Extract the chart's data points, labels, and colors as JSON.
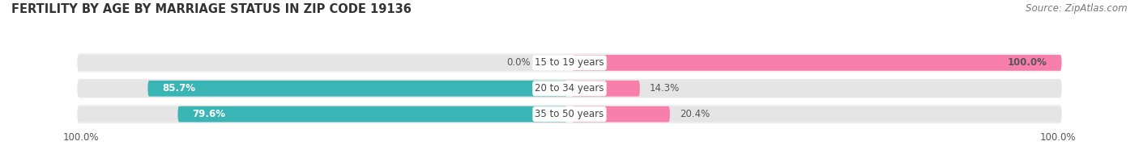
{
  "title": "FERTILITY BY AGE BY MARRIAGE STATUS IN ZIP CODE 19136",
  "source": "Source: ZipAtlas.com",
  "categories": [
    "15 to 19 years",
    "20 to 34 years",
    "35 to 50 years"
  ],
  "married": [
    0.0,
    85.7,
    79.6
  ],
  "unmarried": [
    100.0,
    14.3,
    20.4
  ],
  "married_color": "#3ab5b5",
  "unmarried_color": "#f97fab",
  "bar_bg_color": "#e5e5e5",
  "row_bg_even": "#f0f0f0",
  "row_bg_odd": "#e8e8e8",
  "title_fontsize": 10.5,
  "source_fontsize": 8.5,
  "tick_label_fontsize": 8.5,
  "bar_label_fontsize": 8.5,
  "category_fontsize": 8.5,
  "legend_fontsize": 9,
  "background_color": "#ffffff",
  "married_label_color": "#ffffff",
  "unmarried_label_color": "#555555",
  "zero_label_color": "#555555"
}
